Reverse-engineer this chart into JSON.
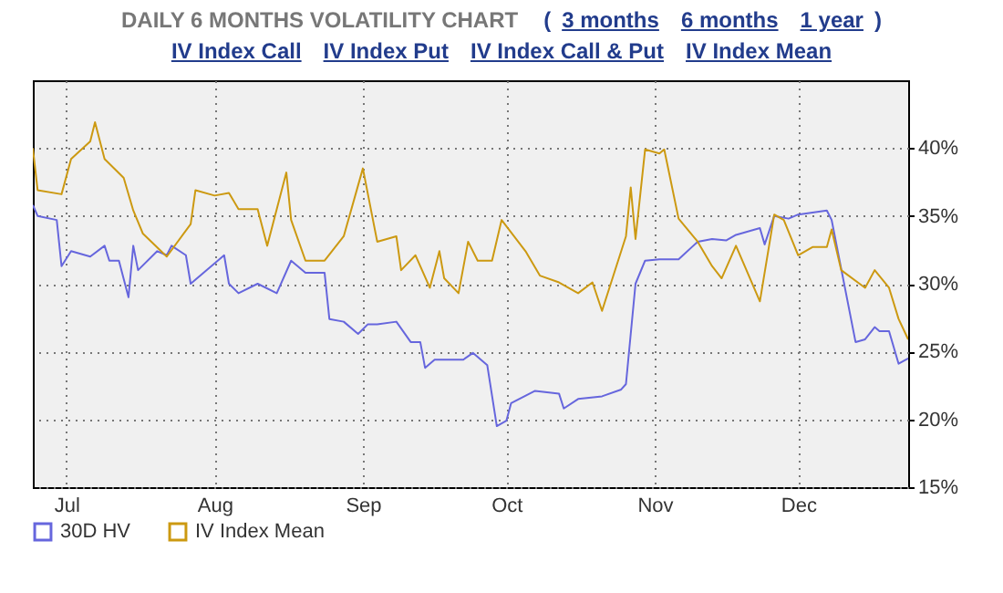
{
  "chart_data": {
    "type": "line",
    "title": "DAILY 6 MONTHS VOLATILITY CHART",
    "annotations": [
      "(",
      "3 months",
      "6 months",
      "1 year",
      ")",
      "IV Index Call",
      "IV Index Put",
      "IV Index Call & Put",
      "IV Index Mean"
    ],
    "series": [
      {
        "name": "30D HV",
        "color": "#6666dd",
        "x": [
          "--06-24",
          "--06-25",
          "--06-29",
          "--06-30",
          "--07-02",
          "--07-06",
          "--07-09",
          "--07-10",
          "--07-12",
          "--07-14",
          "--07-15",
          "--07-16",
          "--07-20",
          "--07-22",
          "--07-23",
          "--07-26",
          "--07-27",
          "--08-03",
          "--08-04",
          "--08-06",
          "--08-10",
          "--08-14",
          "--08-17",
          "--08-20",
          "--08-24",
          "--08-25",
          "--08-28",
          "--08-31",
          "--09-02",
          "--09-04",
          "--09-08",
          "--09-11",
          "--09-13",
          "--09-14",
          "--09-16",
          "--09-22",
          "--09-24",
          "--09-27",
          "--09-29",
          "--10-01",
          "--10-02",
          "--10-07",
          "--10-12",
          "--10-13",
          "--10-16",
          "--10-21",
          "--10-25",
          "--10-26",
          "--10-28",
          "--10-30",
          "--11-02",
          "--11-06",
          "--11-10",
          "--11-13",
          "--11-16",
          "--11-18",
          "--11-23",
          "--11-24",
          "--11-26",
          "--11-29",
          "--12-01",
          "--12-07",
          "--12-08",
          "--12-13",
          "--12-15",
          "--12-17",
          "--12-18",
          "--12-20",
          "--12-22",
          "--12-24"
        ],
        "values": [
          35.8,
          35.0,
          34.7,
          31.3,
          32.4,
          32.0,
          32.8,
          31.7,
          31.7,
          29.0,
          32.8,
          31.0,
          32.4,
          32.1,
          32.8,
          32.1,
          30.0,
          32.1,
          30.0,
          29.3,
          30.0,
          29.3,
          31.7,
          30.8,
          30.8,
          27.4,
          27.2,
          26.3,
          27.0,
          27.0,
          27.2,
          25.7,
          25.7,
          23.8,
          24.4,
          24.4,
          24.9,
          24.0,
          19.5,
          19.9,
          21.2,
          22.1,
          21.9,
          20.8,
          21.5,
          21.7,
          22.2,
          22.6,
          30.0,
          31.7,
          31.8,
          31.8,
          33.1,
          33.3,
          33.2,
          33.6,
          34.1,
          32.9,
          35.0,
          34.8,
          35.1,
          35.4,
          34.7,
          25.7,
          25.9,
          26.8,
          26.5,
          26.5,
          24.1,
          24.5
        ]
      },
      {
        "name": "IV Index Mean",
        "color": "#cc9911",
        "x": [
          "--06-24",
          "--06-25",
          "--06-30",
          "--07-02",
          "--07-06",
          "--07-07",
          "--07-09",
          "--07-13",
          "--07-15",
          "--07-17",
          "--07-22",
          "--07-27",
          "--07-28",
          "--08-01",
          "--08-04",
          "--08-06",
          "--08-10",
          "--08-12",
          "--08-16",
          "--08-17",
          "--08-20",
          "--08-24",
          "--08-28",
          "--09-01",
          "--09-04",
          "--09-08",
          "--09-09",
          "--09-12",
          "--09-15",
          "--09-17",
          "--09-18",
          "--09-21",
          "--09-23",
          "--09-25",
          "--09-28",
          "--09-30",
          "--10-05",
          "--10-08",
          "--10-12",
          "--10-16",
          "--10-19",
          "--10-21",
          "--10-26",
          "--10-27",
          "--10-28",
          "--10-30",
          "--11-02",
          "--11-03",
          "--11-06",
          "--11-10",
          "--11-13",
          "--11-15",
          "--11-18",
          "--11-23",
          "--11-26",
          "--11-28",
          "--12-01",
          "--12-04",
          "--12-07",
          "--12-08",
          "--12-10",
          "--12-15",
          "--12-17",
          "--12-20",
          "--12-22",
          "--12-24"
        ],
        "values": [
          40.0,
          36.9,
          36.6,
          39.2,
          40.5,
          41.9,
          39.2,
          37.8,
          35.4,
          33.7,
          32.0,
          34.4,
          36.9,
          36.5,
          36.7,
          35.5,
          35.5,
          32.8,
          38.2,
          34.7,
          31.7,
          31.7,
          33.5,
          38.5,
          33.1,
          33.5,
          31.0,
          32.1,
          29.7,
          32.4,
          30.4,
          29.3,
          33.1,
          31.7,
          31.7,
          34.7,
          32.4,
          30.6,
          30.1,
          29.3,
          30.1,
          28.0,
          33.5,
          37.1,
          33.3,
          39.9,
          39.6,
          39.9,
          34.8,
          33.1,
          31.3,
          30.4,
          32.8,
          28.7,
          35.1,
          34.7,
          32.1,
          32.7,
          32.7,
          34.0,
          31.0,
          29.7,
          31.0,
          29.7,
          27.4,
          25.9
        ]
      }
    ],
    "xlim": [
      "--06-24",
      "--12-24"
    ],
    "xticks": [
      {
        "value": "--07-01",
        "label": "Jul"
      },
      {
        "value": "--08-01",
        "label": "Aug"
      },
      {
        "value": "--09-01",
        "label": "Sep"
      },
      {
        "value": "--10-01",
        "label": "Oct"
      },
      {
        "value": "--11-01",
        "label": "Nov"
      },
      {
        "value": "--12-01",
        "label": "Dec"
      }
    ],
    "ylim": [
      15,
      45
    ],
    "yticks": [
      {
        "value": 15,
        "label": "15%"
      },
      {
        "value": 20,
        "label": "20%"
      },
      {
        "value": 25,
        "label": "25%"
      },
      {
        "value": 30,
        "label": "30%"
      },
      {
        "value": 35,
        "label": "35%"
      },
      {
        "value": 40,
        "label": "40%"
      }
    ],
    "grid": true,
    "legend": "bottom left",
    "line_style": "solid"
  }
}
